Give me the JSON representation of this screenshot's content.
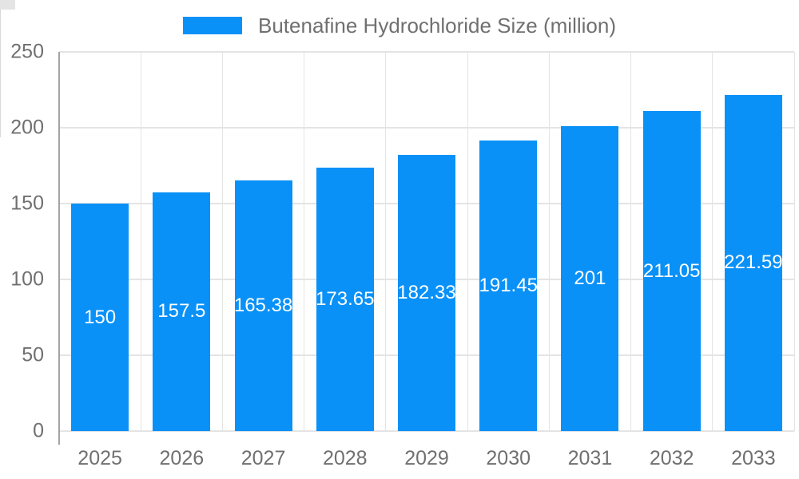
{
  "chart_data": {
    "type": "bar",
    "title": "",
    "legend": {
      "label": "Butenafine Hydrochloride Size (million)",
      "position": "top"
    },
    "categories": [
      "2025",
      "2026",
      "2027",
      "2028",
      "2029",
      "2030",
      "2031",
      "2032",
      "2033"
    ],
    "series": [
      {
        "name": "Butenafine Hydrochloride Size (million)",
        "values": [
          150,
          157.5,
          165.38,
          173.65,
          182.33,
          191.45,
          201,
          211.05,
          221.59
        ]
      }
    ],
    "value_labels": [
      "150",
      "157.5",
      "165.38",
      "173.65",
      "182.33",
      "191.45",
      "201",
      "211.05",
      "221.59"
    ],
    "xlabel": "",
    "ylabel": "",
    "ylim": [
      0,
      250
    ],
    "yticks": [
      0,
      50,
      100,
      150,
      200,
      250
    ],
    "grid": true,
    "colors": {
      "bar": "#0991f8",
      "grid": "#e4e4e4",
      "axis": "#a3a3a3",
      "tick_label": "#707070",
      "value_label": "#ffffff",
      "background": "#ffffff"
    }
  }
}
